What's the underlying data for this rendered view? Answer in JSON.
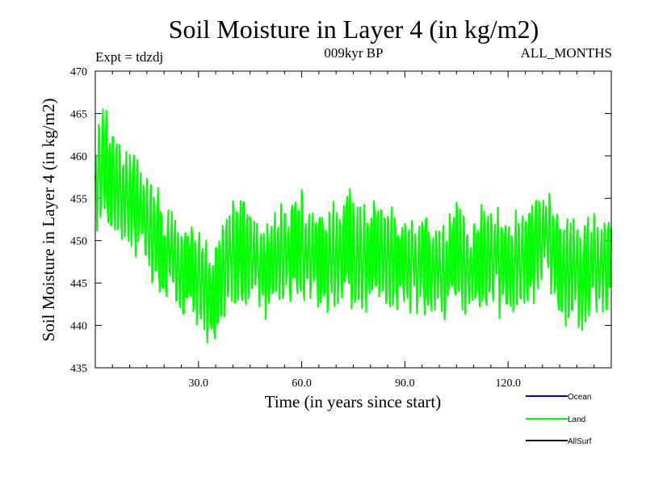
{
  "chart_data": {
    "type": "line",
    "title": "Soil Moisture in Layer 4 (in kg/m2)",
    "subtitle_left": "Expt = tdzdj",
    "subtitle_center": "009kyr BP",
    "subtitle_right": "ALL_MONTHS",
    "xlabel": "Time (in years since start)",
    "ylabel": "Soil Moisture in Layer 4 (in kg/m2)",
    "xlim": [
      0,
      150
    ],
    "ylim": [
      435,
      470
    ],
    "xticks": [
      30,
      60,
      90,
      120
    ],
    "xtick_labels": [
      "30.0",
      "60.0",
      "90.0",
      "120.0"
    ],
    "yticks": [
      435,
      440,
      445,
      450,
      455,
      460,
      465,
      470
    ],
    "ytick_labels": [
      "435",
      "440",
      "445",
      "450",
      "455",
      "460",
      "465",
      "470"
    ],
    "series": [
      {
        "name": "Ocean",
        "color": "#0000cc",
        "values": []
      },
      {
        "name": "Land",
        "color": "#00ff00",
        "x_start": 0,
        "x_step": 0.25,
        "samples_per_year": 4,
        "anchor_x": [
          0,
          1,
          2,
          3,
          4,
          5,
          6,
          8,
          10,
          12,
          14,
          16,
          18,
          20,
          22,
          24,
          26,
          28,
          30,
          32,
          34,
          36,
          38,
          40,
          42,
          44,
          46,
          48,
          50,
          52,
          54,
          56,
          58,
          60,
          62,
          64,
          66,
          68,
          70,
          72,
          74,
          76,
          78,
          80,
          82,
          84,
          86,
          88,
          90,
          92,
          94,
          96,
          98,
          100,
          102,
          104,
          106,
          108,
          110,
          112,
          114,
          116,
          118,
          120,
          122,
          124,
          126,
          128,
          130,
          132,
          134,
          136,
          138,
          140,
          142,
          144,
          146,
          148,
          150
        ],
        "anchor_mean": [
          453,
          458,
          459.5,
          459,
          458,
          457.5,
          457,
          456,
          455,
          454,
          453,
          451,
          450,
          449,
          448,
          447,
          446,
          445.5,
          445,
          444,
          443,
          445,
          447,
          448,
          449,
          448.5,
          448,
          447,
          447.5,
          448,
          448.5,
          448,
          449,
          450,
          449,
          448.5,
          448,
          447.5,
          448,
          448.5,
          449,
          448,
          447.5,
          448,
          448.5,
          448,
          447.5,
          447,
          447.5,
          448,
          447,
          447.5,
          448,
          446,
          447,
          448,
          448,
          447.5,
          447,
          447.5,
          448,
          448,
          447.5,
          447,
          447,
          447.5,
          448,
          449,
          451,
          450,
          448,
          447,
          446,
          446,
          446,
          446.5,
          447,
          447.5,
          448
        ],
        "amplitude": 6,
        "seed": 12345
      },
      {
        "name": "AllSurf",
        "color": "#000000",
        "values": []
      }
    ],
    "legend_position": "bottom-right"
  }
}
